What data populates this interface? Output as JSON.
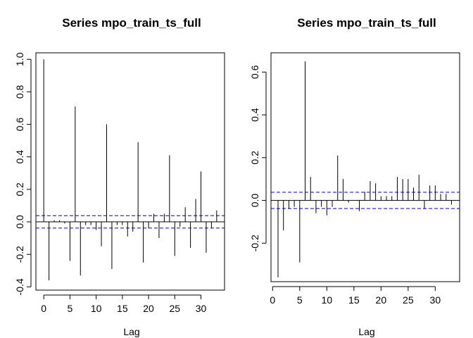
{
  "chart_data": [
    {
      "type": "bar",
      "title": "Series  mpo_train_ts_full",
      "xlabel": "Lag",
      "ylabel": "",
      "xlim": [
        -1.5,
        34.5
      ],
      "ylim": [
        -0.42,
        1.04
      ],
      "x_ticks": [
        0,
        5,
        10,
        15,
        20,
        25,
        30
      ],
      "y_ticks": [
        -0.4,
        -0.2,
        0.0,
        0.2,
        0.4,
        0.6,
        0.8,
        1.0
      ],
      "y_tick_labels": [
        "-0.4",
        "-0.2",
        "0.0",
        "0.2",
        "0.4",
        "0.6",
        "0.8",
        "1.0"
      ],
      "conf_limit": 0.038,
      "conf_color": "#0000cc",
      "lags": [
        0,
        1,
        2,
        3,
        4,
        5,
        6,
        7,
        8,
        9,
        10,
        11,
        12,
        13,
        14,
        15,
        16,
        17,
        18,
        19,
        20,
        21,
        22,
        23,
        24,
        25,
        26,
        27,
        28,
        29,
        30,
        31,
        32,
        33
      ],
      "values": [
        1.0,
        -0.36,
        0.01,
        0.01,
        -0.01,
        -0.24,
        0.71,
        -0.33,
        -0.02,
        -0.02,
        -0.05,
        -0.15,
        0.6,
        -0.29,
        -0.02,
        -0.02,
        -0.09,
        -0.06,
        0.49,
        -0.25,
        -0.04,
        0.05,
        -0.1,
        0.05,
        0.41,
        -0.21,
        -0.03,
        0.09,
        -0.16,
        0.14,
        0.31,
        -0.19,
        -0.04,
        0.07
      ]
    },
    {
      "type": "bar",
      "title": "Series  mpo_train_ts_full",
      "xlabel": "Lag",
      "ylabel": "",
      "xlim": [
        -0.3,
        34.5
      ],
      "ylim": [
        -0.38,
        0.69
      ],
      "x_ticks": [
        0,
        5,
        10,
        15,
        20,
        25,
        30
      ],
      "y_ticks": [
        -0.2,
        0.0,
        0.2,
        0.4,
        0.6
      ],
      "y_tick_labels": [
        "-0.2",
        "0.0",
        "0.2",
        "0.4",
        "0.6"
      ],
      "conf_limit": 0.038,
      "conf_color": "#0000cc",
      "lags": [
        1,
        2,
        3,
        4,
        5,
        6,
        7,
        8,
        9,
        10,
        11,
        12,
        13,
        14,
        15,
        16,
        17,
        18,
        19,
        20,
        21,
        22,
        23,
        24,
        25,
        26,
        27,
        28,
        29,
        30,
        31,
        32,
        33
      ],
      "values": [
        -0.36,
        -0.14,
        -0.04,
        -0.03,
        -0.29,
        0.65,
        0.11,
        -0.06,
        -0.03,
        -0.07,
        -0.03,
        0.21,
        0.1,
        -0.01,
        0.0,
        -0.05,
        0.04,
        0.09,
        0.08,
        0.02,
        0.02,
        0.02,
        0.11,
        0.1,
        0.1,
        0.06,
        0.12,
        -0.04,
        0.07,
        0.07,
        0.03,
        0.03,
        -0.02
      ]
    }
  ]
}
